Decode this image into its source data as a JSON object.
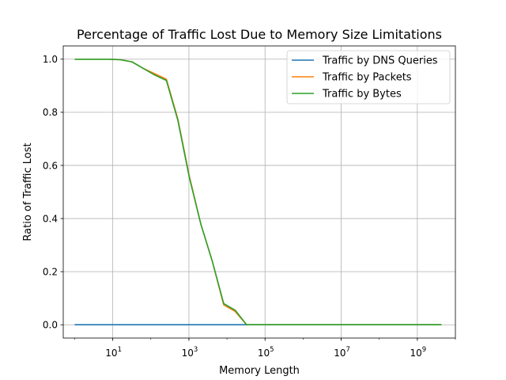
{
  "chart_data": {
    "type": "line",
    "title": "Percentage of Traffic Lost Due to Memory Size Limitations",
    "xlabel": "Memory Length",
    "ylabel": "Ratio of Traffic Lost",
    "xscale": "log",
    "xlim": [
      0.5,
      10000000000
    ],
    "ylim": [
      -0.05,
      1.05
    ],
    "xticks": [
      {
        "base": "10",
        "exp": "1",
        "value": 10
      },
      {
        "base": "10",
        "exp": "3",
        "value": 1000
      },
      {
        "base": "10",
        "exp": "5",
        "value": 100000
      },
      {
        "base": "10",
        "exp": "7",
        "value": 10000000
      },
      {
        "base": "10",
        "exp": "9",
        "value": 1000000000
      }
    ],
    "yticks": [
      "0.0",
      "0.2",
      "0.4",
      "0.6",
      "0.8",
      "1.0"
    ],
    "grid": true,
    "legend_position": "top-right",
    "series": [
      {
        "name": "Traffic by DNS Queries",
        "color": "#1f77b4",
        "x": [
          1,
          4294967296
        ],
        "y": [
          0.0,
          0.0
        ]
      },
      {
        "name": "Traffic by Packets",
        "color": "#ff7f0e",
        "x": [
          1,
          2,
          4,
          8,
          16,
          32,
          64,
          128,
          256,
          512,
          1024,
          2048,
          4096,
          8192,
          16384,
          32768,
          65536,
          4294967296
        ],
        "y": [
          1.0,
          1.0,
          1.0,
          1.0,
          0.998,
          0.99,
          0.965,
          0.945,
          0.925,
          0.775,
          0.56,
          0.38,
          0.24,
          0.075,
          0.05,
          0.0,
          0.0,
          0.0
        ]
      },
      {
        "name": "Traffic by Bytes",
        "color": "#2ca02c",
        "x": [
          1,
          2,
          4,
          8,
          16,
          32,
          64,
          128,
          256,
          512,
          1024,
          2048,
          4096,
          8192,
          16384,
          32768,
          65536,
          4294967296
        ],
        "y": [
          1.0,
          1.0,
          1.0,
          1.0,
          0.998,
          0.99,
          0.965,
          0.94,
          0.92,
          0.77,
          0.555,
          0.38,
          0.24,
          0.08,
          0.055,
          0.0,
          0.0,
          0.0
        ]
      }
    ]
  }
}
